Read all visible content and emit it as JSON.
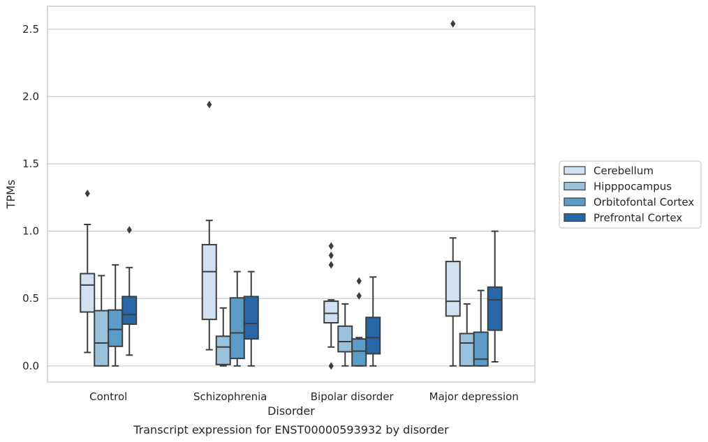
{
  "chart_data": {
    "type": "box",
    "title": "",
    "caption": "Transcript expression for ENST00000593932 by disorder",
    "xlabel": "Disorder",
    "ylabel": "TPMs",
    "ylim": [
      -0.12,
      2.67
    ],
    "yticks": [
      "0.0",
      "0.5",
      "1.0",
      "1.5",
      "2.0",
      "2.5"
    ],
    "grid": "horizontal",
    "legend_position": "right",
    "categories": [
      "Control",
      "Schizophrenia",
      "Bipolar disorder",
      "Major depression"
    ],
    "series": [
      {
        "name": "Cerebellum",
        "color": "#d2e1f1",
        "boxes": [
          {
            "whisker_low": 0.1,
            "q1": 0.4,
            "median": 0.6,
            "q3": 0.685,
            "whisker_high": 1.05,
            "outliers": [
              1.28
            ]
          },
          {
            "whisker_low": 0.12,
            "q1": 0.345,
            "median": 0.7,
            "q3": 0.9,
            "whisker_high": 1.08,
            "outliers": [
              1.94
            ]
          },
          {
            "whisker_low": 0.14,
            "q1": 0.32,
            "median": 0.39,
            "q3": 0.48,
            "whisker_high": 0.49,
            "outliers": [
              0.89,
              0.82,
              0.75,
              0.0
            ]
          },
          {
            "whisker_low": 0.0,
            "q1": 0.37,
            "median": 0.48,
            "q3": 0.775,
            "whisker_high": 0.95,
            "outliers": [
              2.54
            ]
          }
        ]
      },
      {
        "name": "Hipppocampus",
        "color": "#9bc2dd",
        "boxes": [
          {
            "whisker_low": 0.0,
            "q1": 0.0,
            "median": 0.17,
            "q3": 0.41,
            "whisker_high": 0.67,
            "outliers": []
          },
          {
            "whisker_low": 0.0,
            "q1": 0.01,
            "median": 0.14,
            "q3": 0.22,
            "whisker_high": 0.43,
            "outliers": []
          },
          {
            "whisker_low": 0.0,
            "q1": 0.105,
            "median": 0.18,
            "q3": 0.295,
            "whisker_high": 0.46,
            "outliers": []
          },
          {
            "whisker_low": 0.0,
            "q1": 0.0,
            "median": 0.17,
            "q3": 0.24,
            "whisker_high": 0.46,
            "outliers": []
          }
        ]
      },
      {
        "name": "Orbitofontal Cortex",
        "color": "#5b9cc8",
        "boxes": [
          {
            "whisker_low": 0.0,
            "q1": 0.145,
            "median": 0.27,
            "q3": 0.415,
            "whisker_high": 0.75,
            "outliers": []
          },
          {
            "whisker_low": 0.0,
            "q1": 0.055,
            "median": 0.245,
            "q3": 0.505,
            "whisker_high": 0.7,
            "outliers": []
          },
          {
            "whisker_low": 0.0,
            "q1": 0.0,
            "median": 0.11,
            "q3": 0.2,
            "whisker_high": 0.21,
            "outliers": [
              0.63,
              0.52
            ]
          },
          {
            "whisker_low": 0.0,
            "q1": 0.0,
            "median": 0.05,
            "q3": 0.25,
            "whisker_high": 0.56,
            "outliers": []
          }
        ]
      },
      {
        "name": "Prefrontal Cortex",
        "color": "#2767a8",
        "boxes": [
          {
            "whisker_low": 0.08,
            "q1": 0.31,
            "median": 0.38,
            "q3": 0.515,
            "whisker_high": 0.73,
            "outliers": [
              1.01
            ]
          },
          {
            "whisker_low": 0.0,
            "q1": 0.2,
            "median": 0.315,
            "q3": 0.515,
            "whisker_high": 0.7,
            "outliers": []
          },
          {
            "whisker_low": 0.0,
            "q1": 0.09,
            "median": 0.21,
            "q3": 0.36,
            "whisker_high": 0.66,
            "outliers": []
          },
          {
            "whisker_low": 0.03,
            "q1": 0.265,
            "median": 0.49,
            "q3": 0.585,
            "whisker_high": 1.0,
            "outliers": []
          }
        ]
      }
    ]
  }
}
